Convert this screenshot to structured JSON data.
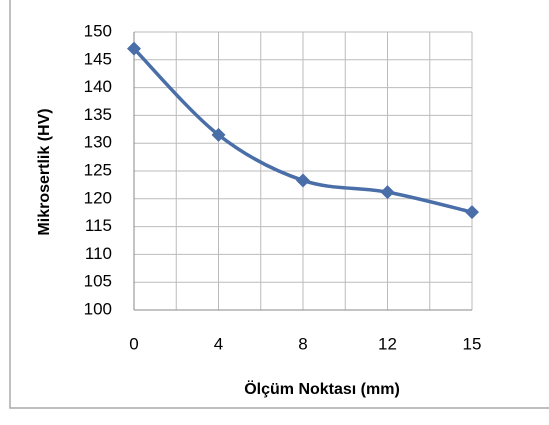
{
  "chart_data": {
    "type": "line",
    "x_label": "Ölçüm Noktası (mm)",
    "y_label": "Mikrosertlik (HV)",
    "categories": [
      "0",
      "4",
      "8",
      "12",
      "15"
    ],
    "series": [
      {
        "color": "#4a6ea8",
        "values": [
          147,
          131.5,
          123.3,
          121.2,
          117.6
        ]
      }
    ],
    "ylim": [
      100,
      150
    ],
    "yticks": [
      100,
      105,
      110,
      115,
      120,
      125,
      130,
      135,
      140,
      145,
      150
    ],
    "grid": true,
    "smooth": true,
    "marker": "diamond"
  }
}
